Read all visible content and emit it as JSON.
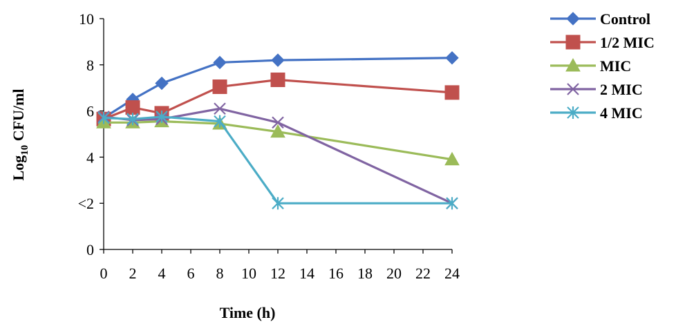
{
  "chart_data": {
    "type": "line",
    "title": "",
    "xlabel": "Time (h)",
    "ylabel_main": "Log",
    "ylabel_sub": "10",
    "ylabel_rest": " CFU/ml",
    "x_ticks": [
      "0",
      "2",
      "4",
      "6",
      "8",
      "10",
      "12",
      "14",
      "16",
      "18",
      "20",
      "22",
      "24"
    ],
    "y_ticks": [
      "0",
      "<2",
      "4",
      "6",
      "8",
      "10"
    ],
    "xlim": [
      0,
      24
    ],
    "ylim": [
      0,
      10
    ],
    "grid": false,
    "legend_position": "right",
    "series": [
      {
        "name": "Control",
        "color": "#4472C4",
        "marker": "diamond",
        "x": [
          0,
          2,
          4,
          8,
          12,
          24
        ],
        "y": [
          5.7,
          6.5,
          7.2,
          8.1,
          8.2,
          8.3
        ]
      },
      {
        "name": "1/2 MIC",
        "color": "#C0504D",
        "marker": "square",
        "x": [
          0,
          2,
          4,
          8,
          12,
          24
        ],
        "y": [
          5.65,
          6.15,
          5.9,
          7.05,
          7.35,
          6.8
        ]
      },
      {
        "name": "MIC",
        "color": "#9BBB59",
        "marker": "triangle",
        "x": [
          0,
          2,
          4,
          8,
          12,
          24
        ],
        "y": [
          5.5,
          5.5,
          5.55,
          5.45,
          5.1,
          3.9
        ]
      },
      {
        "name": "2 MIC",
        "color": "#8064A2",
        "marker": "x",
        "x": [
          0,
          2,
          4,
          8,
          12,
          24
        ],
        "y": [
          5.75,
          5.6,
          5.65,
          6.1,
          5.5,
          2.0
        ]
      },
      {
        "name": "4 MIC",
        "color": "#4BACC6",
        "marker": "asterisk",
        "x": [
          0,
          2,
          4,
          8,
          12,
          24
        ],
        "y": [
          5.7,
          5.65,
          5.75,
          5.55,
          2.0,
          2.0
        ]
      }
    ]
  }
}
